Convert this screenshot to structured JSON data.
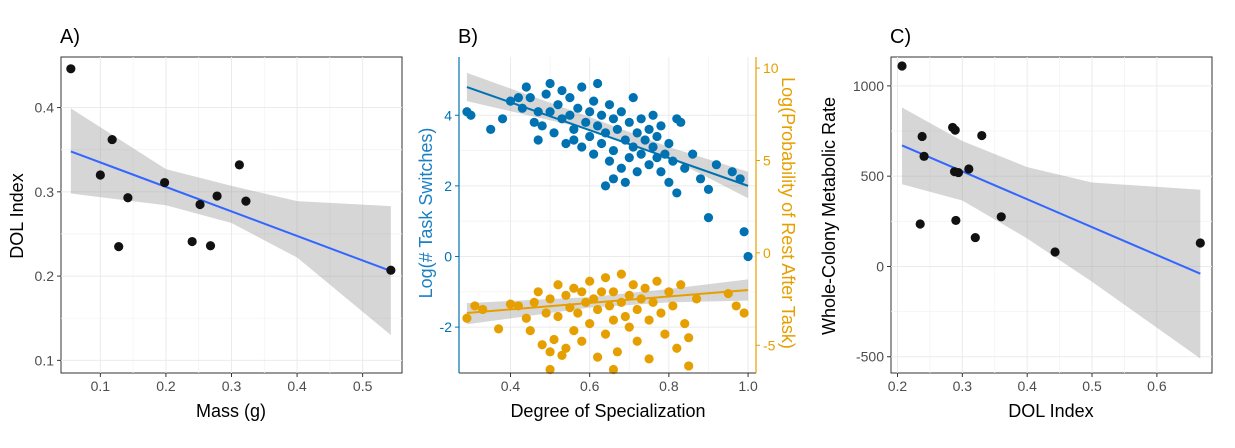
{
  "colors": {
    "point_black": "#111111",
    "fit_blue": "#3366ff",
    "band_gray": "#999999",
    "series_blue": "#0072b2",
    "series_orange": "#e69f00",
    "grid": "#ebebeb",
    "axis_text": "#4d4d4d"
  },
  "chart_data": [
    {
      "panel_label": "A)",
      "type": "scatter",
      "xlabel": "Mass (g)",
      "ylabel": "DOL Index",
      "xlim": [
        0.04,
        0.56
      ],
      "ylim": [
        0.085,
        0.46
      ],
      "xticks": [
        0.1,
        0.2,
        0.3,
        0.4,
        0.5
      ],
      "yticks": [
        0.1,
        0.2,
        0.3,
        0.4
      ],
      "grid": true,
      "points": [
        [
          0.055,
          0.446
        ],
        [
          0.1,
          0.32
        ],
        [
          0.118,
          0.362
        ],
        [
          0.128,
          0.235
        ],
        [
          0.142,
          0.293
        ],
        [
          0.198,
          0.311
        ],
        [
          0.24,
          0.241
        ],
        [
          0.252,
          0.285
        ],
        [
          0.268,
          0.236
        ],
        [
          0.278,
          0.295
        ],
        [
          0.312,
          0.332
        ],
        [
          0.322,
          0.289
        ],
        [
          0.543,
          0.207
        ]
      ],
      "fit": {
        "x": [
          0.055,
          0.543
        ],
        "y": [
          0.348,
          0.206
        ]
      },
      "band": {
        "x": [
          0.055,
          0.2,
          0.3,
          0.4,
          0.543
        ],
        "lower": [
          0.298,
          0.284,
          0.263,
          0.222,
          0.13
        ],
        "upper": [
          0.399,
          0.327,
          0.307,
          0.289,
          0.283
        ]
      }
    },
    {
      "panel_label": "B)",
      "type": "scatter",
      "xlabel": "Degree of Specialization",
      "ylabel": "Log(# Task Switches)",
      "ylabel_right": "Log(Probability of Rest After Task)",
      "xlim": [
        0.27,
        1.02
      ],
      "ylim": [
        -3.3,
        5.65
      ],
      "xticks": [
        0.4,
        0.6,
        0.8,
        1.0
      ],
      "yticks": [
        -2,
        0,
        2,
        4
      ],
      "y2lim": [
        -6.5,
        10.6
      ],
      "y2ticks": [
        -5,
        0,
        5,
        10
      ],
      "grid": true,
      "series": [
        {
          "points": [
            [
              0.29,
              4.1
            ],
            [
              0.3,
              4.0
            ],
            [
              0.35,
              3.6
            ],
            [
              0.38,
              3.9
            ],
            [
              0.4,
              4.4
            ],
            [
              0.42,
              4.5
            ],
            [
              0.43,
              4.2
            ],
            [
              0.44,
              4.8
            ],
            [
              0.45,
              4.5
            ],
            [
              0.46,
              3.8
            ],
            [
              0.47,
              4.1
            ],
            [
              0.47,
              3.3
            ],
            [
              0.48,
              3.7
            ],
            [
              0.49,
              4.6
            ],
            [
              0.5,
              4.9
            ],
            [
              0.5,
              4.1
            ],
            [
              0.51,
              3.5
            ],
            [
              0.52,
              4.3
            ],
            [
              0.53,
              4.7
            ],
            [
              0.53,
              3.9
            ],
            [
              0.54,
              3.2
            ],
            [
              0.55,
              4.0
            ],
            [
              0.55,
              4.5
            ],
            [
              0.56,
              3.6
            ],
            [
              0.57,
              4.2
            ],
            [
              0.58,
              3.1
            ],
            [
              0.58,
              4.8
            ],
            [
              0.59,
              3.8
            ],
            [
              0.6,
              4.1
            ],
            [
              0.6,
              3.4
            ],
            [
              0.61,
              4.4
            ],
            [
              0.61,
              2.9
            ],
            [
              0.62,
              3.7
            ],
            [
              0.62,
              4.9
            ],
            [
              0.63,
              3.2
            ],
            [
              0.63,
              4.0
            ],
            [
              0.64,
              3.5
            ],
            [
              0.65,
              4.3
            ],
            [
              0.65,
              2.7
            ],
            [
              0.66,
              3.9
            ],
            [
              0.66,
              3.0
            ],
            [
              0.67,
              3.6
            ],
            [
              0.68,
              4.1
            ],
            [
              0.68,
              2.5
            ],
            [
              0.69,
              3.3
            ],
            [
              0.7,
              3.8
            ],
            [
              0.7,
              2.8
            ],
            [
              0.71,
              4.5
            ],
            [
              0.71,
              3.1
            ],
            [
              0.72,
              3.5
            ],
            [
              0.72,
              2.4
            ],
            [
              0.73,
              3.9
            ],
            [
              0.73,
              2.9
            ],
            [
              0.74,
              3.3
            ],
            [
              0.75,
              3.6
            ],
            [
              0.75,
              2.6
            ],
            [
              0.76,
              3.1
            ],
            [
              0.76,
              4.0
            ],
            [
              0.77,
              2.8
            ],
            [
              0.77,
              3.4
            ],
            [
              0.78,
              2.4
            ],
            [
              0.78,
              3.7
            ],
            [
              0.79,
              2.9
            ],
            [
              0.8,
              3.2
            ],
            [
              0.8,
              2.1
            ],
            [
              0.81,
              2.7
            ],
            [
              0.82,
              3.9
            ],
            [
              0.82,
              1.8
            ],
            [
              0.83,
              3.8
            ],
            [
              0.84,
              2.5
            ],
            [
              0.86,
              2.9
            ],
            [
              0.88,
              2.2
            ],
            [
              0.9,
              1.9
            ],
            [
              0.92,
              2.6
            ],
            [
              0.96,
              2.4
            ],
            [
              0.98,
              2.2
            ],
            [
              0.9,
              1.1
            ],
            [
              0.99,
              0.7
            ],
            [
              1.0,
              0.0
            ],
            [
              0.66,
              2.2
            ],
            [
              0.56,
              3.3
            ],
            [
              0.64,
              2.0
            ],
            [
              0.69,
              2.1
            ]
          ],
          "fit": {
            "x": [
              0.29,
              1.0
            ],
            "y": [
              4.8,
              2.0
            ]
          },
          "band": {
            "x": [
              0.29,
              0.6,
              0.8,
              1.0
            ],
            "lower": [
              4.4,
              3.6,
              2.8,
              1.65
            ],
            "upper": [
              5.2,
              3.95,
              3.1,
              2.4
            ]
          }
        },
        {
          "points": [
            [
              0.29,
              -1.75
            ],
            [
              0.31,
              -1.4
            ],
            [
              0.33,
              -1.5
            ],
            [
              0.37,
              -2.05
            ],
            [
              0.4,
              -1.35
            ],
            [
              0.42,
              -1.4
            ],
            [
              0.44,
              -1.75
            ],
            [
              0.45,
              -2.1
            ],
            [
              0.46,
              -1.3
            ],
            [
              0.47,
              -1.0
            ],
            [
              0.48,
              -2.5
            ],
            [
              0.49,
              -1.6
            ],
            [
              0.5,
              -1.2
            ],
            [
              0.5,
              -3.2
            ],
            [
              0.51,
              -2.35
            ],
            [
              0.52,
              -0.8
            ],
            [
              0.52,
              -1.7
            ],
            [
              0.53,
              -2.8
            ],
            [
              0.54,
              -1.1
            ],
            [
              0.54,
              -2.6
            ],
            [
              0.55,
              -1.45
            ],
            [
              0.56,
              -0.9
            ],
            [
              0.56,
              -2.1
            ],
            [
              0.57,
              -1.6
            ],
            [
              0.58,
              -1.0
            ],
            [
              0.58,
              -2.4
            ],
            [
              0.59,
              -1.3
            ],
            [
              0.6,
              -0.7
            ],
            [
              0.6,
              -1.9
            ],
            [
              0.61,
              -1.2
            ],
            [
              0.62,
              -2.85
            ],
            [
              0.62,
              -1.5
            ],
            [
              0.63,
              -1.0
            ],
            [
              0.64,
              -2.2
            ],
            [
              0.64,
              -0.6
            ],
            [
              0.65,
              -1.4
            ],
            [
              0.66,
              -1.8
            ],
            [
              0.66,
              -1.0
            ],
            [
              0.67,
              -2.7
            ],
            [
              0.68,
              -1.3
            ],
            [
              0.68,
              -0.5
            ],
            [
              0.69,
              -1.7
            ],
            [
              0.7,
              -1.1
            ],
            [
              0.7,
              -2.0
            ],
            [
              0.71,
              -0.8
            ],
            [
              0.72,
              -1.5
            ],
            [
              0.72,
              -2.4
            ],
            [
              0.73,
              -1.2
            ],
            [
              0.74,
              -0.9
            ],
            [
              0.75,
              -1.8
            ],
            [
              0.75,
              -2.9
            ],
            [
              0.76,
              -1.3
            ],
            [
              0.77,
              -0.7
            ],
            [
              0.78,
              -1.6
            ],
            [
              0.79,
              -2.2
            ],
            [
              0.8,
              -1.0
            ],
            [
              0.81,
              -1.4
            ],
            [
              0.82,
              -2.6
            ],
            [
              0.83,
              -0.8
            ],
            [
              0.84,
              -1.9
            ],
            [
              0.85,
              -2.3
            ],
            [
              0.85,
              -3.1
            ],
            [
              0.87,
              -1.2
            ],
            [
              0.95,
              -1.05
            ],
            [
              0.97,
              -1.4
            ],
            [
              0.99,
              -1.6
            ],
            [
              0.5,
              -2.7
            ],
            [
              0.66,
              -3.2
            ]
          ],
          "fit": {
            "x": [
              0.29,
              1.0
            ],
            "y": [
              -1.6,
              -0.95
            ]
          },
          "band": {
            "x": [
              0.29,
              0.6,
              0.8,
              1.0
            ],
            "lower": [
              -1.92,
              -1.45,
              -1.3,
              -1.25
            ],
            "upper": [
              -1.32,
              -1.15,
              -0.92,
              -0.65
            ]
          }
        }
      ]
    },
    {
      "panel_label": "C)",
      "type": "scatter",
      "xlabel": "DOL Index",
      "ylabel": "Whole-Colony Metabolic Rate",
      "xlim": [
        0.19,
        0.685
      ],
      "ylim": [
        -590,
        1160
      ],
      "xticks": [
        0.2,
        0.3,
        0.4,
        0.5,
        0.6
      ],
      "yticks": [
        -500,
        0,
        500,
        1000
      ],
      "grid": true,
      "points": [
        [
          0.207,
          1110
        ],
        [
          0.235,
          235
        ],
        [
          0.238,
          720
        ],
        [
          0.241,
          610
        ],
        [
          0.285,
          770
        ],
        [
          0.288,
          525
        ],
        [
          0.289,
          755
        ],
        [
          0.29,
          255
        ],
        [
          0.294,
          520
        ],
        [
          0.31,
          540
        ],
        [
          0.32,
          160
        ],
        [
          0.33,
          725
        ],
        [
          0.36,
          275
        ],
        [
          0.443,
          80
        ],
        [
          0.667,
          130
        ]
      ],
      "fit": {
        "x": [
          0.207,
          0.667
        ],
        "y": [
          670,
          -40
        ]
      },
      "band": {
        "x": [
          0.207,
          0.3,
          0.4,
          0.5,
          0.667
        ],
        "lower": [
          455,
          365,
          155,
          -85,
          -510
        ],
        "upper": [
          880,
          695,
          550,
          465,
          425
        ]
      }
    }
  ]
}
